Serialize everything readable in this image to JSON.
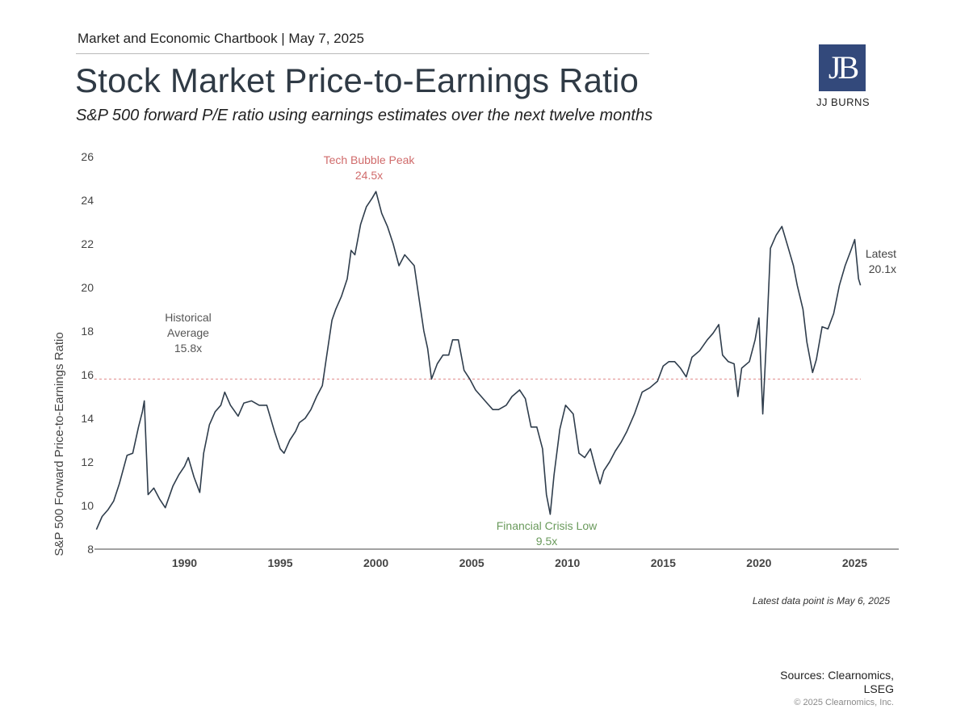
{
  "header": {
    "top_line": "Market and Economic Chartbook | May 7, 2025",
    "title": "Stock Market Price-to-Earnings Ratio",
    "subtitle": "S&P 500 forward P/E ratio using earnings estimates over the next twelve months"
  },
  "logo": {
    "mark": "JB",
    "text": "JJ BURNS",
    "color": "#33497b"
  },
  "footer": {
    "note": "Latest data point is May 6, 2025",
    "sources_line1": "Sources: Clearnomics,",
    "sources_line2": "LSEG",
    "copyright": "© 2025 Clearnomics, Inc."
  },
  "chart_data": {
    "type": "line",
    "ylabel": "S&P 500 Forward Price-to-Earnings Ratio",
    "ylim": [
      8,
      26
    ],
    "xlim": [
      1985.3,
      2027.3
    ],
    "yticks": [
      8,
      10,
      12,
      14,
      16,
      18,
      20,
      22,
      24,
      26
    ],
    "xticks": [
      1990,
      1995,
      2000,
      2005,
      2010,
      2015,
      2020,
      2025
    ],
    "grid": false,
    "line_color": "#2f3d4c",
    "reference_line": {
      "value": 15.8,
      "color": "#e08a8a",
      "style": "dashed"
    },
    "annotations": [
      {
        "lines": [
          "Historical",
          "Average",
          "15.8x"
        ],
        "color": "#555555"
      },
      {
        "lines": [
          "Tech Bubble Peak",
          "24.5x"
        ],
        "color": "#d06b6b"
      },
      {
        "lines": [
          "Financial Crisis Low",
          "9.5x"
        ],
        "color": "#6a9a5c"
      },
      {
        "lines": [
          "Latest",
          "20.1x"
        ],
        "color": "#444444"
      }
    ],
    "series": [
      {
        "x": [
          1985.4,
          1985.7,
          1986.0,
          1986.3,
          1986.6,
          1987.0,
          1987.3,
          1987.6,
          1987.8,
          1987.9,
          1988.1,
          1988.4,
          1988.7,
          1989.0,
          1989.4,
          1989.7,
          1990.0,
          1990.2,
          1990.5,
          1990.8,
          1991.0,
          1991.3,
          1991.6,
          1991.9,
          1992.1,
          1992.4,
          1992.8,
          1993.1,
          1993.5,
          1993.9,
          1994.3,
          1994.7,
          1995.0,
          1995.2,
          1995.5,
          1995.8,
          1996.0,
          1996.3,
          1996.6,
          1996.9,
          1997.2,
          1997.4,
          1997.7,
          1997.9,
          1998.2,
          1998.5,
          1998.7,
          1998.9,
          1999.2,
          1999.5,
          1999.8,
          2000.0,
          2000.3,
          2000.6,
          2000.9,
          2001.2,
          2001.5,
          2001.7,
          2002.0,
          2002.3,
          2002.5,
          2002.7,
          2002.9,
          2003.2,
          2003.5,
          2003.8,
          2004.0,
          2004.3,
          2004.6,
          2004.9,
          2005.2,
          2005.5,
          2005.8,
          2006.1,
          2006.4,
          2006.8,
          2007.1,
          2007.5,
          2007.8,
          2008.1,
          2008.4,
          2008.7,
          2008.9,
          2009.1,
          2009.3,
          2009.6,
          2009.9,
          2010.3,
          2010.6,
          2010.9,
          2011.2,
          2011.5,
          2011.7,
          2011.9,
          2012.2,
          2012.5,
          2012.8,
          2013.1,
          2013.5,
          2013.9,
          2014.3,
          2014.7,
          2015.0,
          2015.3,
          2015.6,
          2015.9,
          2016.2,
          2016.5,
          2016.9,
          2017.3,
          2017.6,
          2017.9,
          2018.1,
          2018.4,
          2018.7,
          2018.9,
          2019.1,
          2019.5,
          2019.8,
          2020.0,
          2020.2,
          2020.4,
          2020.6,
          2020.9,
          2021.2,
          2021.5,
          2021.8,
          2022.0,
          2022.3,
          2022.5,
          2022.8,
          2023.0,
          2023.3,
          2023.6,
          2023.9,
          2024.2,
          2024.5,
          2024.8,
          2025.0,
          2025.2,
          2025.3
        ],
        "values": [
          8.9,
          9.5,
          9.8,
          10.2,
          11.0,
          12.3,
          12.4,
          13.6,
          14.3,
          14.8,
          10.5,
          10.8,
          10.3,
          9.9,
          10.9,
          11.4,
          11.8,
          12.2,
          11.3,
          10.6,
          12.4,
          13.7,
          14.3,
          14.6,
          15.2,
          14.6,
          14.1,
          14.7,
          14.8,
          14.6,
          14.6,
          13.4,
          12.6,
          12.4,
          13.0,
          13.4,
          13.8,
          14.0,
          14.4,
          15.0,
          15.5,
          16.7,
          18.5,
          19.0,
          19.6,
          20.4,
          21.7,
          21.5,
          22.9,
          23.7,
          24.1,
          24.4,
          23.4,
          22.8,
          22.0,
          21.0,
          21.5,
          21.3,
          21.0,
          19.2,
          18.0,
          17.2,
          15.8,
          16.5,
          16.9,
          16.9,
          17.6,
          17.6,
          16.2,
          15.8,
          15.3,
          15.0,
          14.7,
          14.4,
          14.4,
          14.6,
          15.0,
          15.3,
          14.9,
          13.6,
          13.6,
          12.6,
          10.5,
          9.6,
          11.4,
          13.5,
          14.6,
          14.2,
          12.4,
          12.2,
          12.6,
          11.6,
          11.0,
          11.6,
          12.0,
          12.5,
          12.9,
          13.4,
          14.2,
          15.2,
          15.4,
          15.7,
          16.4,
          16.6,
          16.6,
          16.3,
          15.9,
          16.8,
          17.1,
          17.6,
          17.9,
          18.3,
          16.9,
          16.6,
          16.5,
          15.0,
          16.3,
          16.6,
          17.6,
          18.6,
          14.2,
          17.8,
          21.8,
          22.4,
          22.8,
          21.9,
          21.0,
          20.1,
          19.0,
          17.5,
          16.1,
          16.7,
          18.2,
          18.1,
          18.8,
          20.1,
          21.0,
          21.7,
          22.2,
          20.4,
          20.1
        ]
      }
    ]
  }
}
